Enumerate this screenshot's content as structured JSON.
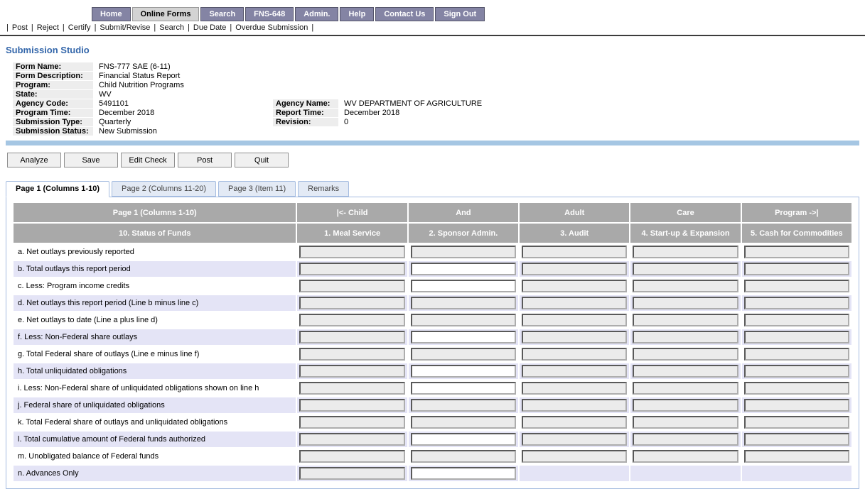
{
  "page_title": "Submission Studio",
  "nav": {
    "items": [
      {
        "label": "Home",
        "active": false
      },
      {
        "label": "Online Forms",
        "active": true
      },
      {
        "label": "Search",
        "active": false
      },
      {
        "label": "FNS-648",
        "active": false
      },
      {
        "label": "Admin.",
        "active": false
      },
      {
        "label": "Help",
        "active": false
      },
      {
        "label": "Contact Us",
        "active": false
      },
      {
        "label": "Sign Out",
        "active": false
      }
    ]
  },
  "toolbar": {
    "separator": "|",
    "items": [
      "Post",
      "Reject",
      "Certify",
      "Submit/Revise",
      "Search",
      "Due Date",
      "Overdue Submission"
    ]
  },
  "meta": {
    "rows": [
      {
        "label": "Form Name:",
        "value": "FNS-777 SAE (6-11)"
      },
      {
        "label": "Form Description:",
        "value": "Financial Status Report"
      },
      {
        "label": "Program:",
        "value": "Child Nutrition Programs"
      },
      {
        "label": "State:",
        "value": "WV"
      },
      {
        "label": "Agency Code:",
        "value": "5491101",
        "label2": "Agency Name:",
        "value2": "WV DEPARTMENT OF AGRICULTURE"
      },
      {
        "label": "Program Time:",
        "value": "December 2018",
        "label2": "Report Time:",
        "value2": "December 2018"
      },
      {
        "label": "Submission Type:",
        "value": "Quarterly",
        "label2": "Revision:",
        "value2": "0"
      },
      {
        "label": "Submission Status:",
        "value": "New Submission"
      }
    ]
  },
  "actions": [
    "Analyze",
    "Save",
    "Edit Check",
    "Post",
    "Quit"
  ],
  "tabs": [
    {
      "label": "Page 1 (Columns 1-10)",
      "active": true
    },
    {
      "label": "Page 2 (Columns 11-20)",
      "active": false
    },
    {
      "label": "Page 3 (Item 11)",
      "active": false
    },
    {
      "label": "Remarks",
      "active": false
    }
  ],
  "form_table": {
    "header_row1": [
      "Page 1 (Columns 1-10)",
      "|<- Child",
      "And",
      "Adult",
      "Care",
      "Program ->|"
    ],
    "header_row2": [
      "10. Status of Funds",
      "1. Meal Service",
      "2. Sponsor Admin.",
      "3. Audit",
      "4. Start-up & Expansion",
      "5. Cash for Commodities"
    ],
    "rows": [
      {
        "label": "a. Net outlays previously reported",
        "cells": [
          "readonly",
          "readonly",
          "readonly",
          "readonly",
          "readonly"
        ]
      },
      {
        "label": "b. Total outlays this report period",
        "cells": [
          "readonly",
          "editable",
          "readonly",
          "readonly",
          "readonly"
        ]
      },
      {
        "label": "c. Less: Program income credits",
        "cells": [
          "readonly",
          "editable",
          "readonly",
          "readonly",
          "readonly"
        ]
      },
      {
        "label": "d. Net outlays this report period (Line b minus line c)",
        "cells": [
          "readonly",
          "readonly",
          "readonly",
          "readonly",
          "readonly"
        ]
      },
      {
        "label": "e. Net outlays to date (Line a plus line d)",
        "cells": [
          "readonly",
          "readonly",
          "readonly",
          "readonly",
          "readonly"
        ]
      },
      {
        "label": "f. Less: Non-Federal share outlays",
        "cells": [
          "readonly",
          "editable",
          "readonly",
          "readonly",
          "readonly"
        ]
      },
      {
        "label": "g. Total Federal share of outlays (Line e minus line f)",
        "cells": [
          "readonly",
          "readonly",
          "readonly",
          "readonly",
          "readonly"
        ]
      },
      {
        "label": "h. Total unliquidated obligations",
        "cells": [
          "readonly",
          "editable",
          "readonly",
          "readonly",
          "readonly"
        ]
      },
      {
        "label": "i. Less: Non-Federal share of unliquidated obligations shown on line h",
        "cells": [
          "readonly",
          "editable",
          "readonly",
          "readonly",
          "readonly"
        ]
      },
      {
        "label": "j. Federal share of unliquidated obligations",
        "cells": [
          "readonly",
          "readonly",
          "readonly",
          "readonly",
          "readonly"
        ]
      },
      {
        "label": "k. Total Federal share of outlays and unliquidated obligations",
        "cells": [
          "readonly",
          "readonly",
          "readonly",
          "readonly",
          "readonly"
        ]
      },
      {
        "label": "l. Total cumulative amount of Federal funds authorized",
        "cells": [
          "readonly",
          "editable",
          "readonly",
          "readonly",
          "readonly"
        ]
      },
      {
        "label": "m. Unobligated balance of Federal funds",
        "cells": [
          "readonly",
          "readonly",
          "readonly",
          "readonly",
          "readonly"
        ]
      },
      {
        "label": "n. Advances Only",
        "cells": [
          "readonly",
          "editable",
          "empty",
          "empty",
          "empty"
        ]
      }
    ],
    "field_value": ""
  },
  "colors": {
    "nav_bg": "#8484a4",
    "nav_active_bg": "#d3d3d3",
    "title_blue": "#3366aa",
    "divider_blue": "#a5c6e3",
    "table_header_gray": "#a9a9a9",
    "row_lavender": "#e4e4f6",
    "readonly_field_bg": "#ebebeb",
    "tab_border_blue": "#a5bce0"
  }
}
